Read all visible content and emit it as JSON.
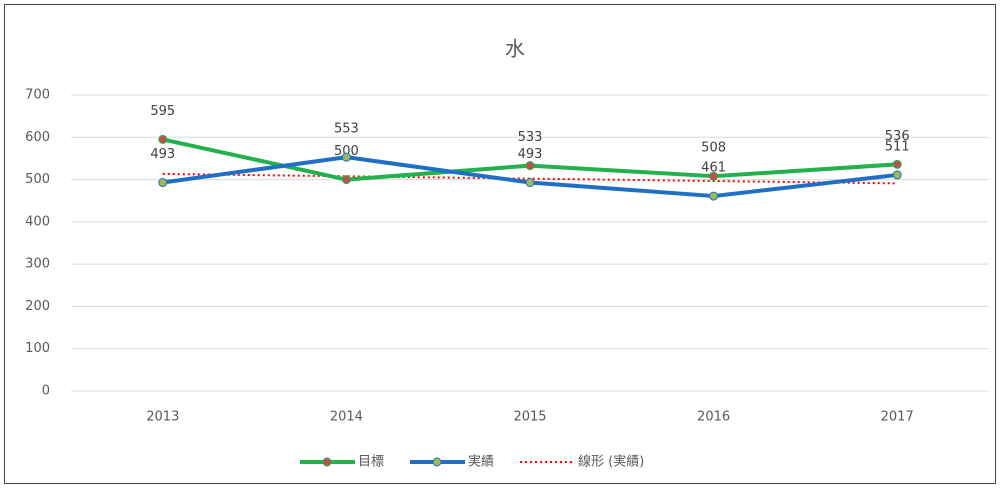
{
  "chart_data": {
    "type": "line",
    "title": "水",
    "categories": [
      "2013",
      "2014",
      "2015",
      "2016",
      "2017"
    ],
    "series": [
      {
        "name": "目標",
        "color": "#22b14c",
        "marker_color": "#c0504d",
        "values": [
          595,
          500,
          533,
          508,
          536
        ],
        "data_labels": true
      },
      {
        "name": "実績",
        "color": "#1f6fc5",
        "marker_color": "#9bbb59",
        "values": [
          493,
          553,
          493,
          461,
          511
        ],
        "data_labels": true
      },
      {
        "name": "線形 (実績)",
        "color": "#ff0000",
        "dashed": true,
        "values": [
          513.4,
          507.8,
          502.2,
          496.6,
          491
        ]
      }
    ],
    "ylim": [
      0,
      700
    ],
    "yticks": [
      0,
      100,
      200,
      300,
      400,
      500,
      600,
      700
    ],
    "grid": true,
    "legend": "bottom"
  }
}
